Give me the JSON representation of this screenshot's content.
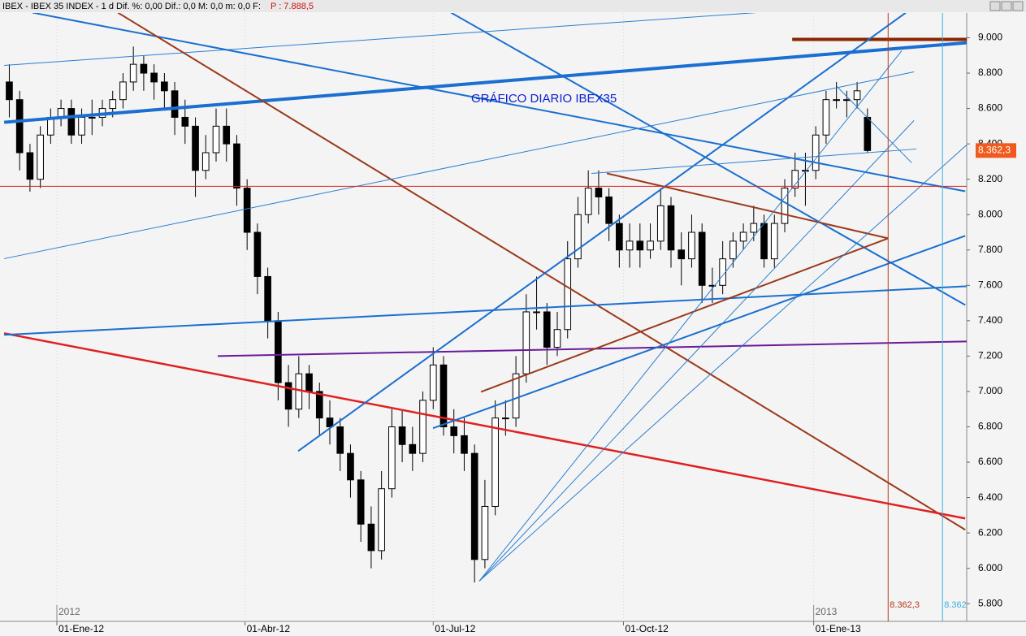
{
  "chart_data": {
    "type": "candlestick",
    "header": "IBEX - IBEX 35 INDEX - 1 d Dif. %: 0,00 Dif.: 0,0 M: 0,0 m: 0,0 F:",
    "header_price": "P : 7.888,5",
    "title": "GRÁFICO DIARIO IBEX35",
    "x": [
      -23,
      -18,
      -13,
      -8,
      -3,
      2,
      7,
      12,
      17,
      22,
      27,
      32,
      37,
      42,
      47,
      52,
      57,
      62,
      67,
      72,
      77,
      82,
      87,
      92,
      97,
      102,
      107,
      112,
      117,
      122,
      127,
      132,
      137,
      142,
      147,
      152,
      157,
      162,
      167,
      172,
      177,
      182,
      187,
      192,
      197,
      202,
      207,
      212,
      217,
      222,
      227,
      232,
      237,
      242,
      247,
      252,
      257,
      262,
      267,
      272,
      277,
      282,
      287,
      292,
      297,
      302,
      307,
      312,
      317,
      322,
      327,
      332,
      337,
      342,
      347,
      352,
      357,
      362,
      367,
      372,
      377,
      382,
      387,
      392
    ],
    "open": [
      8750,
      8650,
      8350,
      8200,
      8450,
      8550,
      8600,
      8450,
      8550,
      8550,
      8600,
      8650,
      8750,
      8850,
      8800,
      8750,
      8700,
      8550,
      8500,
      8250,
      8350,
      8500,
      8400,
      8150,
      7900,
      7650,
      7400,
      7050,
      6900,
      7100,
      7000,
      6850,
      6800,
      6650,
      6500,
      6250,
      6100,
      6450,
      6800,
      6700,
      6650,
      6950,
      7150,
      6800,
      6750,
      6650,
      6050,
      6350,
      6850,
      6850,
      7100,
      7450,
      7450,
      7250,
      7350,
      7750,
      8000,
      8150,
      8100,
      7950,
      7800,
      7850,
      7800,
      7850,
      8050,
      7800,
      7750,
      7900,
      7600,
      7600,
      7750,
      7850,
      7900,
      7950,
      7750,
      7950,
      8150,
      8250,
      8250,
      8450,
      8650,
      8650,
      8650,
      8550
    ],
    "high": [
      8850,
      8700,
      8400,
      8500,
      8600,
      8650,
      8650,
      8600,
      8650,
      8650,
      8700,
      8800,
      8950,
      8900,
      8850,
      8800,
      8750,
      8650,
      8550,
      8450,
      8600,
      8600,
      8450,
      8200,
      7950,
      7700,
      7450,
      7150,
      7200,
      7150,
      7050,
      6950,
      6850,
      6700,
      6550,
      6350,
      6550,
      6900,
      6900,
      6800,
      7000,
      7250,
      7200,
      6900,
      6850,
      6700,
      6500,
      6950,
      6950,
      7200,
      7550,
      7650,
      7500,
      7450,
      7850,
      8100,
      8250,
      8250,
      8150,
      8000,
      7950,
      7950,
      7950,
      8150,
      8100,
      7900,
      8000,
      7950,
      7700,
      7850,
      7900,
      7950,
      8050,
      8000,
      8000,
      8200,
      8350,
      8350,
      8500,
      8700,
      8750,
      8700,
      8750,
      8600
    ],
    "low": [
      8550,
      8250,
      8130,
      8150,
      8400,
      8500,
      8400,
      8400,
      8450,
      8500,
      8550,
      8600,
      8700,
      8700,
      8650,
      8600,
      8450,
      8400,
      8100,
      8200,
      8300,
      8300,
      8050,
      7800,
      7550,
      7300,
      6950,
      6800,
      6850,
      6900,
      6750,
      6700,
      6550,
      6400,
      6150,
      6000,
      6050,
      6400,
      6600,
      6550,
      6600,
      6900,
      6750,
      6650,
      6550,
      5920,
      6000,
      6300,
      6750,
      6800,
      7050,
      7350,
      7150,
      7200,
      7300,
      7700,
      7950,
      8000,
      7850,
      7700,
      7700,
      7700,
      7750,
      7800,
      7700,
      7600,
      7700,
      7500,
      7500,
      7550,
      7700,
      7800,
      7850,
      7700,
      7700,
      7900,
      8100,
      8050,
      8200,
      8400,
      8600,
      8550,
      8600,
      8350
    ],
    "close": [
      8650,
      8350,
      8200,
      8450,
      8550,
      8600,
      8450,
      8550,
      8550,
      8600,
      8650,
      8750,
      8850,
      8800,
      8750,
      8700,
      8550,
      8500,
      8250,
      8350,
      8500,
      8400,
      8150,
      7900,
      7650,
      7400,
      7050,
      6900,
      7100,
      7000,
      6850,
      6800,
      6650,
      6500,
      6250,
      6100,
      6450,
      6800,
      6700,
      6650,
      6950,
      7150,
      6800,
      6750,
      6650,
      6050,
      6350,
      6850,
      6850,
      7100,
      7450,
      7450,
      7250,
      7350,
      7750,
      8000,
      8150,
      8100,
      7950,
      7800,
      7850,
      7800,
      7850,
      8050,
      7800,
      7750,
      7900,
      7600,
      7600,
      7750,
      7850,
      7900,
      7950,
      7750,
      7950,
      8150,
      8250,
      8250,
      8450,
      8650,
      8650,
      8650,
      8700,
      8362.3
    ],
    "up_color": "#ffffff",
    "down_color": "#000000",
    "xlim": [
      -27.5,
      440
    ],
    "ylim": [
      5700,
      9140
    ],
    "xticks": [
      {
        "value": 0,
        "label": "01-Ene-12"
      },
      {
        "value": 91,
        "label": "01-Abr-12"
      },
      {
        "value": 182,
        "label": "01-Jul-12"
      },
      {
        "value": 274,
        "label": "01-Oct-12"
      },
      {
        "value": 366,
        "label": "01-Ene-13"
      }
    ],
    "period_labels": [
      {
        "value": 0,
        "label": "2012"
      },
      {
        "value": 366,
        "label": "2013"
      }
    ],
    "yticks": [
      {
        "value": 5800,
        "label": "5.800"
      },
      {
        "value": 6000,
        "label": "6.000"
      },
      {
        "value": 6200,
        "label": "6.200"
      },
      {
        "value": 6400,
        "label": "6.400"
      },
      {
        "value": 6600,
        "label": "6.600"
      },
      {
        "value": 6800,
        "label": "6.800"
      },
      {
        "value": 7000,
        "label": "7.000"
      },
      {
        "value": 7200,
        "label": "7.200"
      },
      {
        "value": 7400,
        "label": "7.400"
      },
      {
        "value": 7600,
        "label": "7.600"
      },
      {
        "value": 7800,
        "label": "7.800"
      },
      {
        "value": 8000,
        "label": "8.000"
      },
      {
        "value": 8200,
        "label": "8.200"
      },
      {
        "value": 8400,
        "label": "8.400"
      },
      {
        "value": 8600,
        "label": "8.600"
      },
      {
        "value": 8800,
        "label": "8.800"
      },
      {
        "value": 9000,
        "label": "9.000"
      }
    ],
    "last_label": "8.362,3",
    "last_color": "#f05a1e",
    "lines": [
      {
        "color": "#1a6fd0",
        "width": 4,
        "x": [
          -25.5,
          440
        ],
        "y": [
          8522,
          8972
        ]
      },
      {
        "color": "#8b2500",
        "width": 4,
        "x": [
          355.6,
          440
        ],
        "y": [
          8991,
          8991
        ]
      },
      {
        "color": "#2a7fd0",
        "width": 1,
        "x": [
          -25.5,
          338
        ],
        "y": [
          8844,
          9142
        ]
      },
      {
        "color": "#1a6fd0",
        "width": 2,
        "x": [
          -11.8,
          439.3
        ],
        "y": [
          9142,
          8132
        ]
      },
      {
        "color": "#1a6fd0",
        "width": 2,
        "x": [
          190.6,
          439.3
        ],
        "y": [
          9142,
          7489
        ]
      },
      {
        "color": "#9b3a1a",
        "width": 2,
        "x": [
          29.5,
          439.3
        ],
        "y": [
          9142,
          6218
        ]
      },
      {
        "color": "#e02020",
        "width": 2.5,
        "x": [
          -25.5,
          439.3
        ],
        "y": [
          7329,
          6282
        ]
      },
      {
        "color": "#1a6fd0",
        "width": 2,
        "x": [
          -25.5,
          440
        ],
        "y": [
          7320,
          7595
        ]
      },
      {
        "color": "#6a1a9a",
        "width": 2,
        "x": [
          77.8,
          440
        ],
        "y": [
          7200,
          7283
        ]
      },
      {
        "color": "#1a6fd0",
        "width": 2,
        "x": [
          116.7,
          410.6
        ],
        "y": [
          6663,
          9142
        ]
      },
      {
        "color": "#1a6fd0",
        "width": 2,
        "x": [
          181.9,
          439.3
        ],
        "y": [
          6792,
          7880
        ]
      },
      {
        "color": "#9b3a1a",
        "width": 2,
        "x": [
          205.1,
          402
        ],
        "y": [
          6998,
          7866
        ]
      },
      {
        "color": "#9b3a1a",
        "width": 2,
        "x": [
          266,
          402
        ],
        "y": [
          8233,
          7866
        ]
      },
      {
        "color": "#2a7fd0",
        "width": 1,
        "x": [
          -25.5,
          414.5
        ],
        "y": [
          7751,
          8807
        ]
      },
      {
        "color": "#2a7fd0",
        "width": 1,
        "x": [
          258.5,
          415.7
        ],
        "y": [
          8233,
          8371
        ]
      },
      {
        "color": "#2a7fd0",
        "width": 1,
        "x": [
          204.3,
          440
        ],
        "y": [
          5928,
          8394
        ]
      },
      {
        "color": "#2a7fd0",
        "width": 1,
        "x": [
          204.3,
          414.5
        ],
        "y": [
          5928,
          8532
        ]
      },
      {
        "color": "#2a7fd0",
        "width": 1,
        "x": [
          204.3,
          408.6
        ],
        "y": [
          5928,
          8927
        ]
      },
      {
        "color": "#e02020",
        "width": 1,
        "x": [
          -27.5,
          440
        ],
        "y": [
          8160,
          8160
        ]
      },
      {
        "color": "#2a7fd0",
        "width": 1,
        "x": [
          377.2,
          413.4
        ],
        "y": [
          8725,
          8293
        ]
      }
    ],
    "markers": [
      {
        "x": 402,
        "color": "#b03a1a",
        "label": "8.362,3"
      },
      {
        "x": 428.3,
        "color": "#3aaee0",
        "label": "8.362"
      }
    ]
  }
}
